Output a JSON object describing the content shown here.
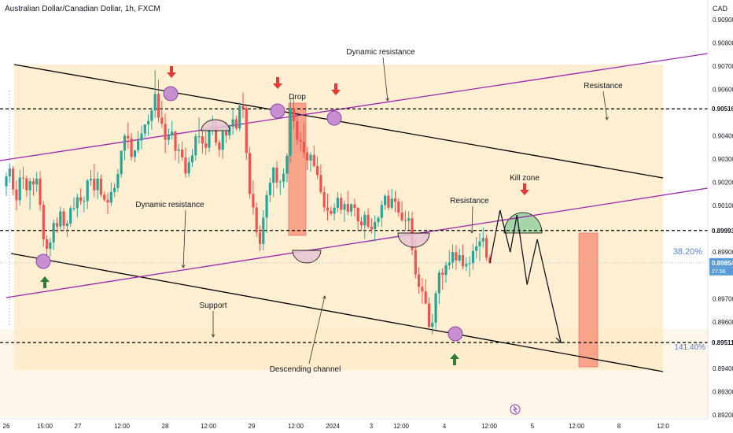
{
  "chart_data": {
    "type": "candlestick",
    "title": "Australian Dollar/Canadian Dollar, 1h, FXCM",
    "symbol": "AUDCAD",
    "currency_label": "CAD",
    "ylim": [
      0.8919,
      0.9095
    ],
    "y_ticks": [
      "0.90900",
      "0.90800",
      "0.90700",
      "0.90600",
      "0.90400",
      "0.90300",
      "0.90200",
      "0.90100",
      "0.89900",
      "0.89700",
      "0.89600",
      "0.89400",
      "0.89300",
      "0.89200"
    ],
    "x_ticks": [
      "26",
      "15:00",
      "27",
      "12:00",
      "28",
      "12:00",
      "29",
      "12:00",
      "2024",
      "3",
      "12:00",
      "4",
      "12:00",
      "5",
      "12:00",
      "8",
      "12:0"
    ],
    "price_levels": [
      {
        "name": "resistance-upper",
        "value": 0.90516,
        "label": "0.90516"
      },
      {
        "name": "resistance-lower",
        "value": 0.89993,
        "label": "0.89993"
      },
      {
        "name": "support",
        "value": 0.89511,
        "label": "0.89511"
      }
    ],
    "current_price": {
      "value": 0.89854,
      "label": "0.89854",
      "sub_label": "27:56"
    },
    "fib_levels": [
      {
        "label": "38.20%",
        "value": 0.89906
      },
      {
        "label": "141.40%",
        "value": 0.89486
      }
    ],
    "annotations": {
      "dynamic_resistance_top": "Dynamic resistance",
      "resistance_top": "Resistance",
      "drop": "Drop",
      "kill_zone": "Kill zone",
      "resistance_mid": "Resistance",
      "dynamic_resistance_left": "Dynamic resistance",
      "support": "Support",
      "descending_channel": "Descending channel"
    },
    "colors": {
      "up": "#26a69a",
      "down": "#ef5350",
      "channel_fill": "#fde9c3",
      "dynamic_line": "#9c27b0",
      "channel_line": "#000000",
      "price_badge": "#5b9bd5",
      "fib_label": "#5b7fc7",
      "kill_zone": "#a5d6a7",
      "drop_box": "#f8a488",
      "arrow_red": "#e53935",
      "arrow_green": "#2e7d32",
      "marker": "#c58fd0"
    },
    "x_range": [
      0,
      200
    ],
    "candles": [
      [
        0,
        0.90183,
        0.90242,
        0.90142,
        0.90225
      ],
      [
        1,
        0.90225,
        0.90281,
        0.90199,
        0.90259
      ],
      [
        2,
        0.90259,
        0.9027,
        0.90144,
        0.90169
      ],
      [
        3,
        0.90169,
        0.90208,
        0.9008,
        0.90123
      ],
      [
        4,
        0.90123,
        0.90254,
        0.90101,
        0.9022
      ],
      [
        5,
        0.9022,
        0.90267,
        0.90172,
        0.90217
      ],
      [
        6,
        0.90217,
        0.90229,
        0.90137,
        0.90166
      ],
      [
        7,
        0.90166,
        0.90219,
        0.90082,
        0.90205
      ],
      [
        8,
        0.90205,
        0.90219,
        0.90142,
        0.90191
      ],
      [
        9,
        0.90191,
        0.90245,
        0.90159,
        0.90216
      ],
      [
        10,
        0.90216,
        0.90248,
        0.90078,
        0.90103
      ],
      [
        11,
        0.90103,
        0.9012,
        0.89922,
        0.89954
      ],
      [
        12,
        0.89954,
        0.89973,
        0.89882,
        0.89914
      ],
      [
        13,
        0.89914,
        0.8996,
        0.8988,
        0.89942
      ],
      [
        14,
        0.89942,
        0.9004,
        0.89909,
        0.90025
      ],
      [
        15,
        0.90025,
        0.90048,
        0.89983,
        0.9001
      ],
      [
        16,
        0.9001,
        0.90095,
        0.89996,
        0.90075
      ],
      [
        17,
        0.90075,
        0.90089,
        0.8999,
        0.90013
      ],
      [
        18,
        0.90013,
        0.90036,
        0.89965,
        0.90023
      ],
      [
        19,
        0.90023,
        0.90099,
        0.9001,
        0.90089
      ],
      [
        20,
        0.90089,
        0.90135,
        0.90076,
        0.90089
      ],
      [
        21,
        0.90089,
        0.90152,
        0.90048,
        0.90136
      ],
      [
        22,
        0.90136,
        0.90175,
        0.90104,
        0.90119
      ],
      [
        23,
        0.90119,
        0.90139,
        0.90072,
        0.90119
      ],
      [
        24,
        0.90119,
        0.90215,
        0.90085,
        0.90208
      ],
      [
        25,
        0.90208,
        0.90254,
        0.90186,
        0.90215
      ],
      [
        26,
        0.90215,
        0.90281,
        0.90136,
        0.90166
      ],
      [
        27,
        0.90166,
        0.90244,
        0.90128,
        0.90216
      ],
      [
        28,
        0.90216,
        0.90233,
        0.90136,
        0.90147
      ],
      [
        29,
        0.90147,
        0.9016,
        0.90118,
        0.90125
      ],
      [
        30,
        0.90125,
        0.90155,
        0.90063,
        0.90113
      ],
      [
        31,
        0.90113,
        0.902,
        0.90097,
        0.90158
      ],
      [
        32,
        0.90158,
        0.90197,
        0.90137,
        0.90176
      ],
      [
        33,
        0.90176,
        0.90257,
        0.90159,
        0.90236
      ],
      [
        34,
        0.90236,
        0.90336,
        0.9022,
        0.90336
      ],
      [
        35,
        0.90336,
        0.90409,
        0.90295,
        0.904
      ],
      [
        36,
        0.904,
        0.90458,
        0.90345,
        0.90389
      ],
      [
        37,
        0.90389,
        0.90412,
        0.90294,
        0.90309
      ],
      [
        38,
        0.90309,
        0.90338,
        0.90286,
        0.90338
      ],
      [
        39,
        0.90338,
        0.9042,
        0.90326,
        0.9038
      ],
      [
        40,
        0.9038,
        0.90444,
        0.90343,
        0.9041
      ],
      [
        41,
        0.9041,
        0.90449,
        0.90393,
        0.90449
      ],
      [
        42,
        0.90449,
        0.90492,
        0.90401,
        0.90464
      ],
      [
        43,
        0.90464,
        0.90521,
        0.90426,
        0.90509
      ],
      [
        44,
        0.90509,
        0.90682,
        0.90477,
        0.9058
      ],
      [
        45,
        0.9058,
        0.90641,
        0.90459,
        0.90478
      ],
      [
        46,
        0.90478,
        0.90552,
        0.90434,
        0.90452
      ],
      [
        47,
        0.90452,
        0.90495,
        0.90326,
        0.90383
      ],
      [
        48,
        0.90383,
        0.90432,
        0.9036,
        0.90402
      ],
      [
        49,
        0.90402,
        0.90465,
        0.90384,
        0.90418
      ],
      [
        50,
        0.90418,
        0.90423,
        0.90295,
        0.90335
      ],
      [
        51,
        0.90335,
        0.90365,
        0.90281,
        0.90341
      ],
      [
        52,
        0.90341,
        0.90376,
        0.90292,
        0.90307
      ],
      [
        53,
        0.90307,
        0.9035,
        0.9022,
        0.90238
      ],
      [
        54,
        0.90238,
        0.90308,
        0.90223,
        0.90286
      ],
      [
        55,
        0.90286,
        0.90343,
        0.90265,
        0.90316
      ],
      [
        56,
        0.90316,
        0.9041,
        0.90294,
        0.90398
      ],
      [
        57,
        0.90398,
        0.9048,
        0.90367,
        0.90398
      ],
      [
        58,
        0.90398,
        0.90439,
        0.90324,
        0.90367
      ],
      [
        59,
        0.90367,
        0.90418,
        0.90318,
        0.90349
      ],
      [
        60,
        0.90349,
        0.90441,
        0.9033,
        0.90429
      ],
      [
        61,
        0.90429,
        0.90487,
        0.90403,
        0.90443
      ],
      [
        62,
        0.90443,
        0.90462,
        0.90357,
        0.90371
      ],
      [
        63,
        0.90371,
        0.90383,
        0.90309,
        0.9034
      ],
      [
        64,
        0.9034,
        0.90436,
        0.90302,
        0.90418
      ],
      [
        65,
        0.90418,
        0.90459,
        0.90369,
        0.90401
      ],
      [
        66,
        0.90401,
        0.90449,
        0.90384,
        0.90439
      ],
      [
        67,
        0.90439,
        0.90515,
        0.90403,
        0.90471
      ],
      [
        68,
        0.90471,
        0.90486,
        0.90423,
        0.90432
      ],
      [
        69,
        0.90432,
        0.90544,
        0.9042,
        0.90529
      ],
      [
        70,
        0.90529,
        0.90586,
        0.90476,
        0.90518
      ],
      [
        71,
        0.90518,
        0.9053,
        0.90296,
        0.90326
      ],
      [
        72,
        0.90326,
        0.90352,
        0.90129,
        0.9015
      ],
      [
        73,
        0.9015,
        0.90209,
        0.9006,
        0.90092
      ],
      [
        74,
        0.90092,
        0.90113,
        0.89965,
        0.89985
      ],
      [
        75,
        0.89985,
        0.90014,
        0.89905,
        0.89935
      ],
      [
        76,
        0.89935,
        0.9008,
        0.89907,
        0.90048
      ],
      [
        77,
        0.90048,
        0.90164,
        0.89982,
        0.90145
      ],
      [
        78,
        0.90145,
        0.9022,
        0.90114,
        0.90198
      ],
      [
        79,
        0.90198,
        0.90268,
        0.90136,
        0.90263
      ],
      [
        80,
        0.90263,
        0.90291,
        0.90175,
        0.902
      ],
      [
        81,
        0.902,
        0.90212,
        0.90146,
        0.90203
      ],
      [
        82,
        0.90203,
        0.9026,
        0.90176,
        0.90237
      ],
      [
        83,
        0.90237,
        0.90326,
        0.902,
        0.90314
      ],
      [
        84,
        0.90314,
        0.9056,
        0.90285,
        0.90519
      ],
      [
        85,
        0.90519,
        0.90567,
        0.90431,
        0.90463
      ],
      [
        86,
        0.90463,
        0.90485,
        0.9036,
        0.90383
      ],
      [
        87,
        0.90383,
        0.90414,
        0.90333,
        0.90375
      ],
      [
        88,
        0.90375,
        0.90452,
        0.90305,
        0.90328
      ],
      [
        89,
        0.90328,
        0.90352,
        0.90253,
        0.90294
      ],
      [
        90,
        0.90294,
        0.9033,
        0.90246,
        0.90318
      ],
      [
        91,
        0.90318,
        0.90358,
        0.90265,
        0.9027
      ],
      [
        92,
        0.9027,
        0.9031,
        0.90214,
        0.90231
      ],
      [
        93,
        0.90231,
        0.90277,
        0.90149,
        0.90158
      ],
      [
        94,
        0.90158,
        0.90183,
        0.90073,
        0.90092
      ],
      [
        95,
        0.90092,
        0.90151,
        0.90035,
        0.90078
      ],
      [
        96,
        0.90078,
        0.90096,
        0.90057,
        0.90065
      ],
      [
        97,
        0.90065,
        0.90109,
        0.90035,
        0.90091
      ],
      [
        98,
        0.90091,
        0.90158,
        0.90072,
        0.90133
      ],
      [
        99,
        0.90133,
        0.90152,
        0.90063,
        0.90082
      ],
      [
        100,
        0.90082,
        0.90121,
        0.9003,
        0.90107
      ],
      [
        101,
        0.90107,
        0.90163,
        0.9006,
        0.90074
      ],
      [
        102,
        0.90074,
        0.90111,
        0.90054,
        0.90105
      ],
      [
        103,
        0.90105,
        0.90129,
        0.90053,
        0.9009
      ],
      [
        104,
        0.9009,
        0.90093,
        0.89994,
        0.90032
      ],
      [
        105,
        0.90032,
        0.90052,
        0.8999,
        0.90015
      ],
      [
        106,
        0.90015,
        0.90075,
        0.89957,
        0.9006
      ],
      [
        107,
        0.9006,
        0.90089,
        0.90001,
        0.90009
      ],
      [
        108,
        0.90009,
        0.90046,
        0.8998,
        0.89998
      ],
      [
        109,
        0.89998,
        0.90058,
        0.89945,
        0.90029
      ],
      [
        110,
        0.90029,
        0.90055,
        0.90009,
        0.90047
      ],
      [
        111,
        0.90047,
        0.90121,
        0.90008,
        0.90102
      ],
      [
        112,
        0.90102,
        0.90149,
        0.90082,
        0.90142
      ],
      [
        113,
        0.90142,
        0.90166,
        0.9008,
        0.90091
      ],
      [
        114,
        0.90091,
        0.90171,
        0.90083,
        0.9013
      ],
      [
        115,
        0.9013,
        0.90163,
        0.90071,
        0.90117
      ],
      [
        116,
        0.90117,
        0.90131,
        0.90052,
        0.9007
      ],
      [
        117,
        0.9007,
        0.90119,
        0.90031,
        0.90037
      ],
      [
        118,
        0.90037,
        0.90079,
        0.89992,
        0.90035
      ],
      [
        119,
        0.90035,
        0.90076,
        0.89995,
        0.90045
      ],
      [
        120,
        0.90045,
        0.90073,
        0.89887,
        0.89909
      ],
      [
        121,
        0.89909,
        0.89957,
        0.89786,
        0.89804
      ],
      [
        122,
        0.89804,
        0.89836,
        0.89721,
        0.89751
      ],
      [
        123,
        0.89751,
        0.89788,
        0.89678,
        0.89731
      ],
      [
        124,
        0.89731,
        0.89784,
        0.89676,
        0.89679
      ],
      [
        125,
        0.89679,
        0.89705,
        0.89566,
        0.89579
      ],
      [
        126,
        0.89579,
        0.89634,
        0.89546,
        0.89596
      ],
      [
        127,
        0.89596,
        0.89735,
        0.89567,
        0.89723
      ],
      [
        128,
        0.89723,
        0.89824,
        0.89676,
        0.89812
      ],
      [
        129,
        0.89812,
        0.89831,
        0.89739,
        0.89802
      ],
      [
        130,
        0.89802,
        0.89858,
        0.89768,
        0.89844
      ],
      [
        131,
        0.89844,
        0.89909,
        0.89825,
        0.89855
      ],
      [
        132,
        0.89855,
        0.89934,
        0.8983,
        0.899
      ],
      [
        133,
        0.899,
        0.8993,
        0.89825,
        0.89864
      ],
      [
        134,
        0.89864,
        0.89916,
        0.89855,
        0.89887
      ],
      [
        135,
        0.89887,
        0.89933,
        0.89826,
        0.89839
      ],
      [
        136,
        0.89839,
        0.89877,
        0.89819,
        0.89849
      ],
      [
        137,
        0.89849,
        0.89882,
        0.89794,
        0.89853
      ],
      [
        138,
        0.89853,
        0.89936,
        0.89825,
        0.89905
      ],
      [
        139,
        0.89905,
        0.89965,
        0.89872,
        0.89925
      ],
      [
        140,
        0.89925,
        0.89981,
        0.89862,
        0.89946
      ],
      [
        141,
        0.89946,
        0.90006,
        0.89919,
        0.8996
      ],
      [
        142,
        0.8996,
        0.89974,
        0.89862,
        0.89876
      ],
      [
        143,
        0.89876,
        0.89889,
        0.8985,
        0.89854
      ]
    ],
    "projection": [
      [
        143,
        0.89854
      ],
      [
        146,
        0.9008
      ],
      [
        149,
        0.899
      ],
      [
        151,
        0.9006
      ],
      [
        154,
        0.8976
      ],
      [
        157,
        0.89955
      ],
      [
        164,
        0.89511
      ]
    ]
  }
}
